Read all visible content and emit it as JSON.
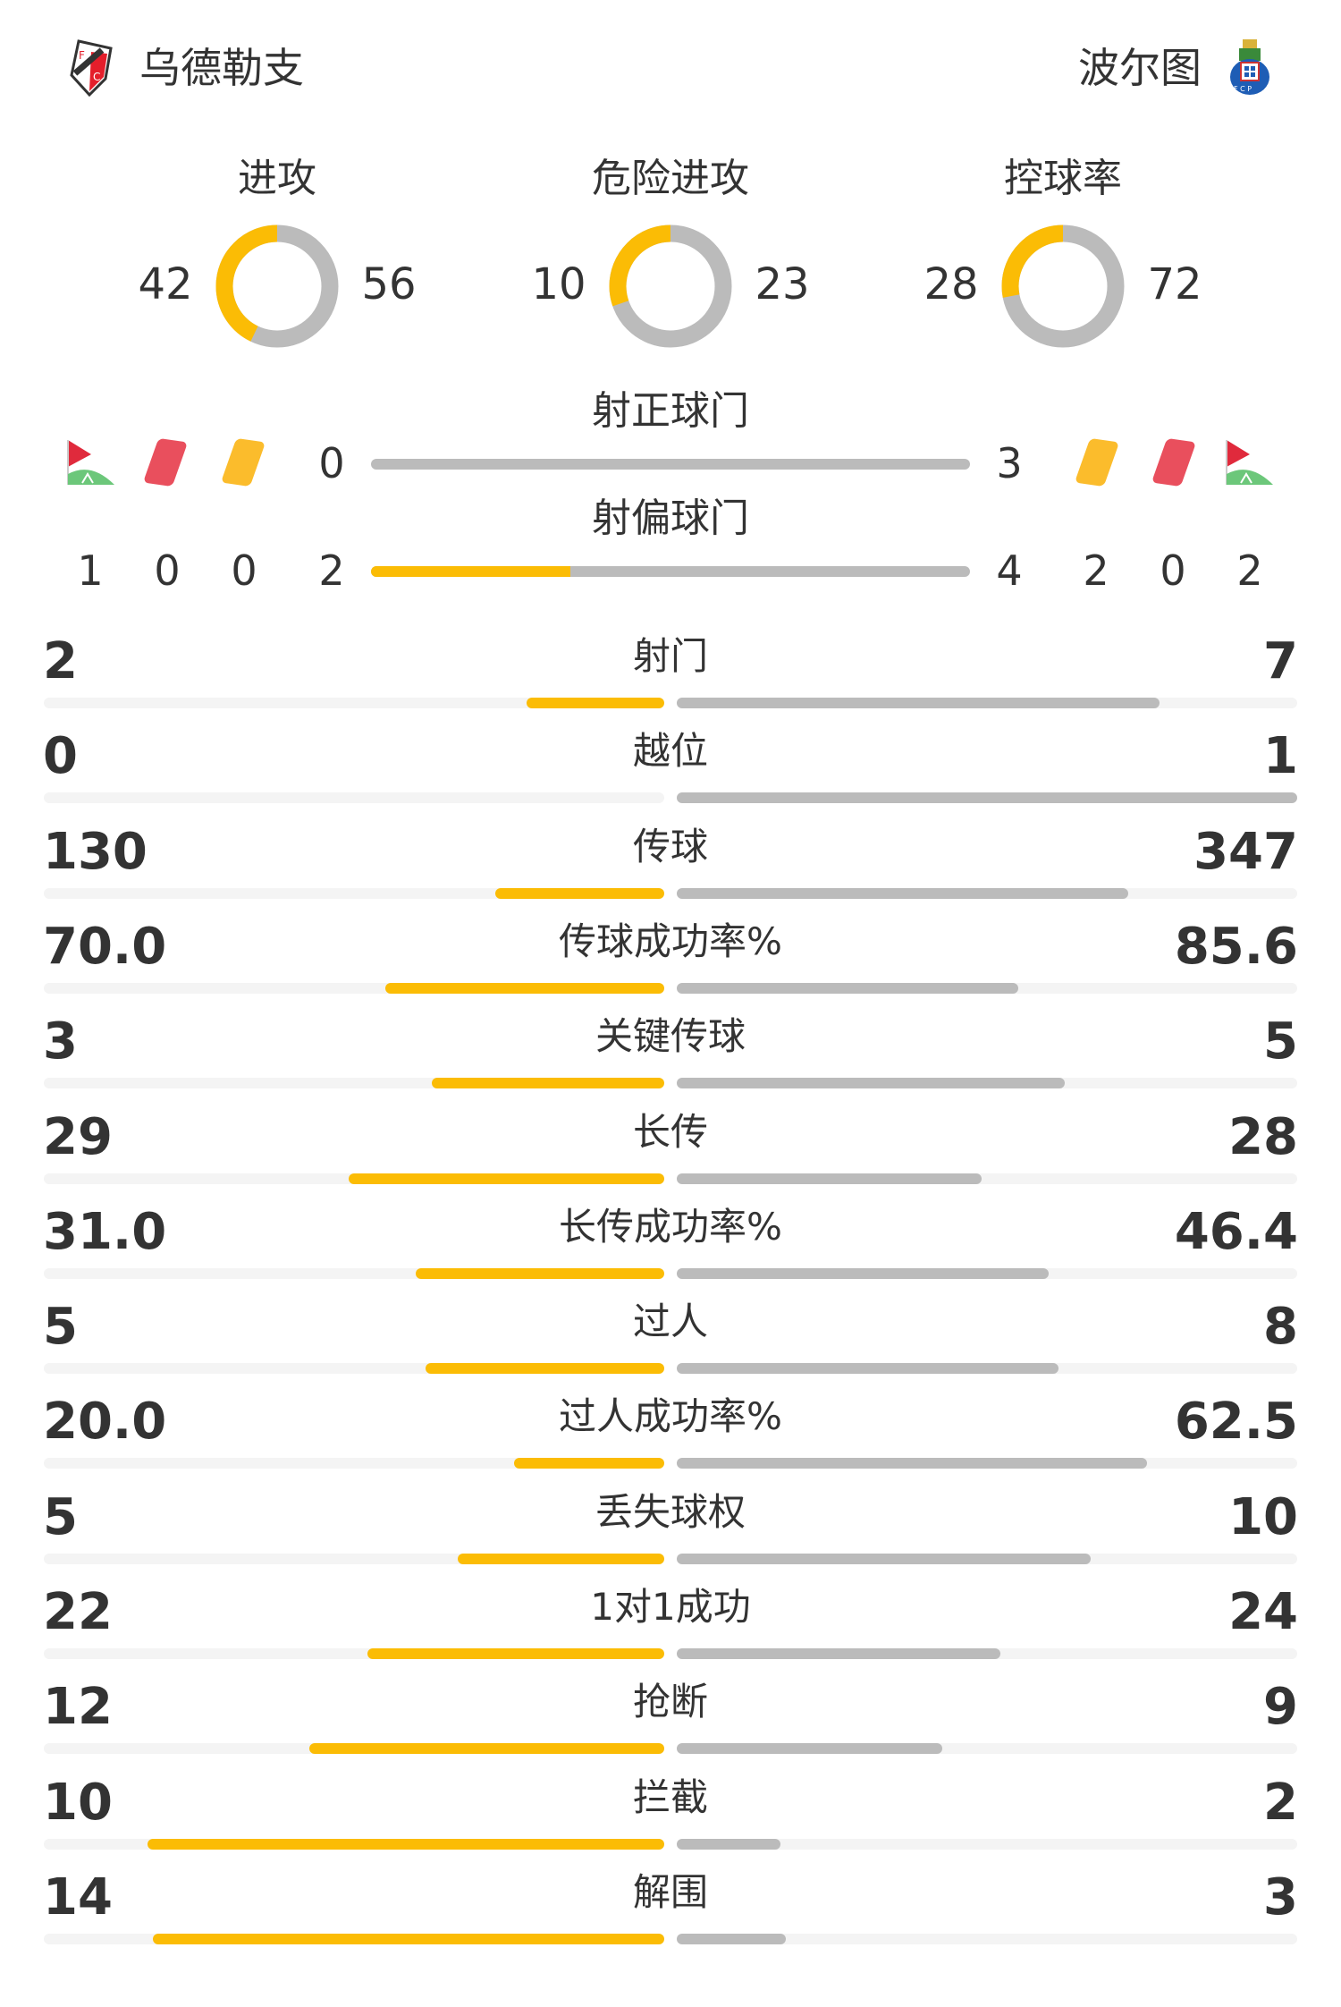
{
  "colors": {
    "home": "#fbbc05",
    "away": "#bbbbbb",
    "track": "#f4f4f4",
    "red_card": "#e94f5d",
    "yellow_card": "#fbbc2c",
    "corner_flag": "#e02a3c",
    "corner_field": "#6cc77a"
  },
  "header": {
    "home": {
      "name": "乌德勒支",
      "logo": "fc-utrecht-crest-icon",
      "logo_text": "FC UTRECHT"
    },
    "away": {
      "name": "波尔图",
      "logo": "fc-porto-crest-icon",
      "logo_text": "FCP"
    }
  },
  "donuts": [
    {
      "title": "进攻",
      "home": "42",
      "away": "56"
    },
    {
      "title": "危险进攻",
      "home": "10",
      "away": "23"
    },
    {
      "title": "控球率",
      "home": "28",
      "away": "72"
    }
  ],
  "shots_on": {
    "title": "射正球门",
    "home": "0",
    "away": "3"
  },
  "shots_off": {
    "title": "射偏球门",
    "home": "2",
    "away": "4"
  },
  "discipline": {
    "home": {
      "corners": "1",
      "red": "0",
      "yellow": "0"
    },
    "away": {
      "yellow": "2",
      "red": "0",
      "corners": "2"
    }
  },
  "stats": [
    {
      "label": "射门",
      "home": "2",
      "away": "7"
    },
    {
      "label": "越位",
      "home": "0",
      "away": "1"
    },
    {
      "label": "传球",
      "home": "130",
      "away": "347"
    },
    {
      "label": "传球成功率%",
      "home": "70.0",
      "away": "85.6"
    },
    {
      "label": "关键传球",
      "home": "3",
      "away": "5"
    },
    {
      "label": "长传",
      "home": "29",
      "away": "28"
    },
    {
      "label": "长传成功率%",
      "home": "31.0",
      "away": "46.4"
    },
    {
      "label": "过人",
      "home": "5",
      "away": "8"
    },
    {
      "label": "过人成功率%",
      "home": "20.0",
      "away": "62.5"
    },
    {
      "label": "丢失球权",
      "home": "5",
      "away": "10"
    },
    {
      "label": "1对1成功",
      "home": "22",
      "away": "24"
    },
    {
      "label": "抢断",
      "home": "12",
      "away": "9"
    },
    {
      "label": "拦截",
      "home": "10",
      "away": "2"
    },
    {
      "label": "解围",
      "home": "14",
      "away": "3"
    }
  ]
}
